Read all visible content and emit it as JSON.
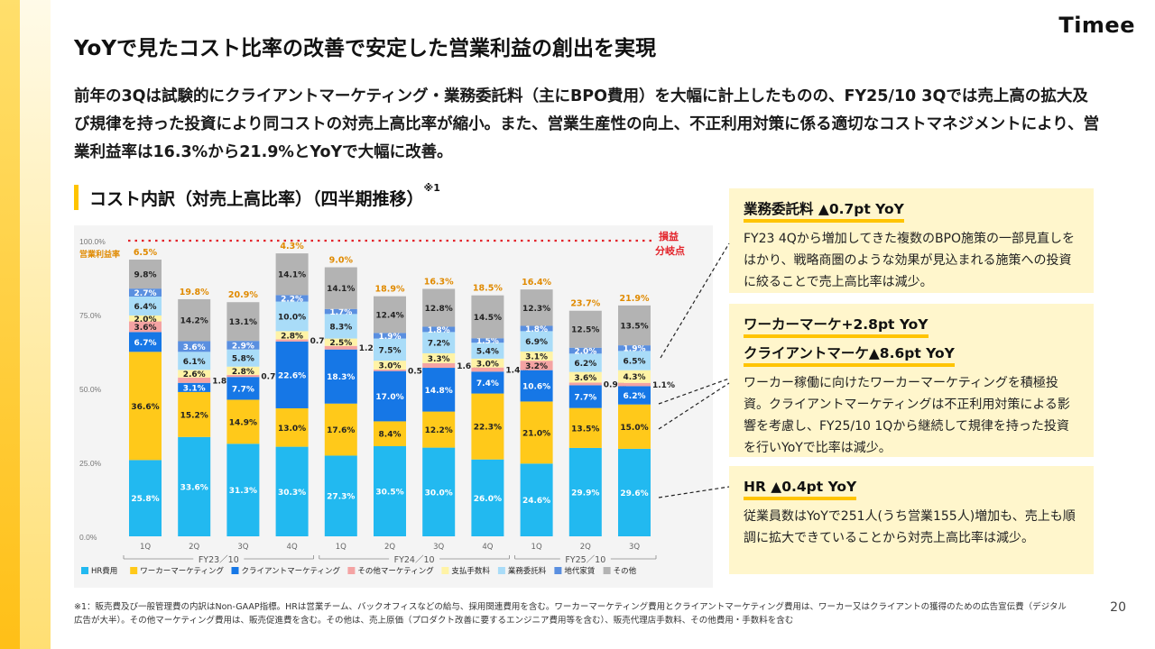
{
  "logo": "Timee",
  "title": "YoYで見たコスト比率の改善で安定した営業利益の創出を実現",
  "lead": "前年の3Qは試験的にクライアントマーケティング・業務委託料（主にBPO費用）を大幅に計上したものの、FY25/10 3Qでは売上高の拡大及び規律を持った投資により同コストの対売上高比率が縮小。また、営業生産性の向上、不正利用対策に係る適切なコストマネジメントにより、営業利益率は16.3%から21.9%とYoYで大幅に改善。",
  "section_title": "コスト内訳（対売上高比率）（四半期推移）",
  "section_note": "※1",
  "cards": [
    {
      "head": "業務委託料 ▲0.7pt YoY",
      "body": "FY23 4Qから増加してきた複数のBPO施策の一部見直しをはかり、戦略商圏のような効果が見込まれる施策への投資に絞ることで売上高比率は減少。"
    },
    {
      "head": "ワーカーマーケ+2.8pt YoY",
      "head2": "クライアントマーケ▲8.6pt YoY",
      "body": "ワーカー稼働に向けたワーカーマーケティングを積極投資。クライアントマーケティングは不正利用対策による影響を考慮し、FY25/10 1Qから継続して規律を持った投資を行いYoYで比率は減少。"
    },
    {
      "head": "HR ▲0.4pt YoY",
      "body": "従業員数はYoYで251人(うち営業155人)増加も、売上も順調に拡大できていることから対売上高比率は減少。"
    }
  ],
  "footnote": "※1：販売費及び一般管理費の内訳はNon-GAAP指標。HRは営業チーム、バックオフィスなどの給与、採用関連費用を含む。ワーカーマーケティング費用とクライアントマーケティング費用は、ワーカー又はクライアントの獲得のための広告宣伝費（デジタル広告が大半）。その他マーケティング費用は、販売促進費を含む。その他は、売上原価（プロダクト改善に要するエンジニア費用等を含む）、販売代理店手数料、その他費用・手数料を含む",
  "page_number": "20",
  "chart_data": {
    "type": "bar",
    "stacked": true,
    "categories": [
      "1Q",
      "2Q",
      "3Q",
      "4Q",
      "1Q",
      "2Q",
      "3Q",
      "4Q",
      "1Q",
      "2Q",
      "3Q"
    ],
    "groups": [
      {
        "label": "FY23／10",
        "count": 4
      },
      {
        "label": "FY24／10",
        "count": 4
      },
      {
        "label": "FY25／10",
        "count": 3
      }
    ],
    "ylim": [
      0,
      100
    ],
    "yticks": [
      "0.0%",
      "25.0%",
      "50.0%",
      "75.0%",
      "100.0%"
    ],
    "breakeven_label": [
      "損益",
      "分岐点"
    ],
    "op_margin_label": "営業利益率",
    "op_margin": [
      "6.5%",
      "19.8%",
      "20.9%",
      "4.3%",
      "9.0%",
      "18.9%",
      "16.3%",
      "18.5%",
      "16.4%",
      "23.7%",
      "21.9%"
    ],
    "series": [
      {
        "name": "HR費用",
        "color": "#22b9f0",
        "values": [
          25.8,
          33.6,
          31.3,
          30.3,
          27.3,
          30.5,
          30.0,
          26.0,
          24.6,
          29.9,
          29.6
        ]
      },
      {
        "name": "ワーカーマーケティング",
        "color": "#ffc91a",
        "values": [
          36.6,
          15.2,
          14.9,
          13.0,
          17.6,
          8.4,
          12.2,
          22.3,
          21.0,
          13.5,
          15.0
        ]
      },
      {
        "name": "クライアントマーケティング",
        "color": "#1677e6",
        "values": [
          6.7,
          3.1,
          7.7,
          22.6,
          18.3,
          17.0,
          14.8,
          7.4,
          10.6,
          7.7,
          6.2
        ]
      },
      {
        "name": "その他マーケティング",
        "color": "#f4a3a3",
        "values": [
          3.6,
          1.8,
          0.7,
          0.7,
          1.2,
          0.5,
          1.6,
          1.4,
          3.2,
          0.9,
          1.1
        ]
      },
      {
        "name": "支払手数料",
        "color": "#fff3a6",
        "values": [
          2.0,
          2.6,
          2.8,
          2.8,
          2.5,
          3.0,
          3.3,
          3.0,
          3.1,
          3.6,
          4.3
        ]
      },
      {
        "name": "業務委託料",
        "color": "#a9dcf8",
        "values": [
          6.4,
          6.1,
          5.8,
          10.0,
          8.3,
          7.5,
          7.2,
          5.4,
          6.9,
          6.2,
          6.5
        ]
      },
      {
        "name": "地代家賃",
        "color": "#5a8fe0",
        "values": [
          2.7,
          3.6,
          2.9,
          2.2,
          1.7,
          1.9,
          1.8,
          1.5,
          1.8,
          2.0,
          1.9
        ]
      },
      {
        "name": "その他",
        "color": "#b3b3b3",
        "values": [
          9.8,
          14.2,
          13.1,
          14.1,
          14.1,
          12.4,
          12.8,
          14.5,
          12.3,
          12.5,
          13.5
        ]
      }
    ]
  }
}
